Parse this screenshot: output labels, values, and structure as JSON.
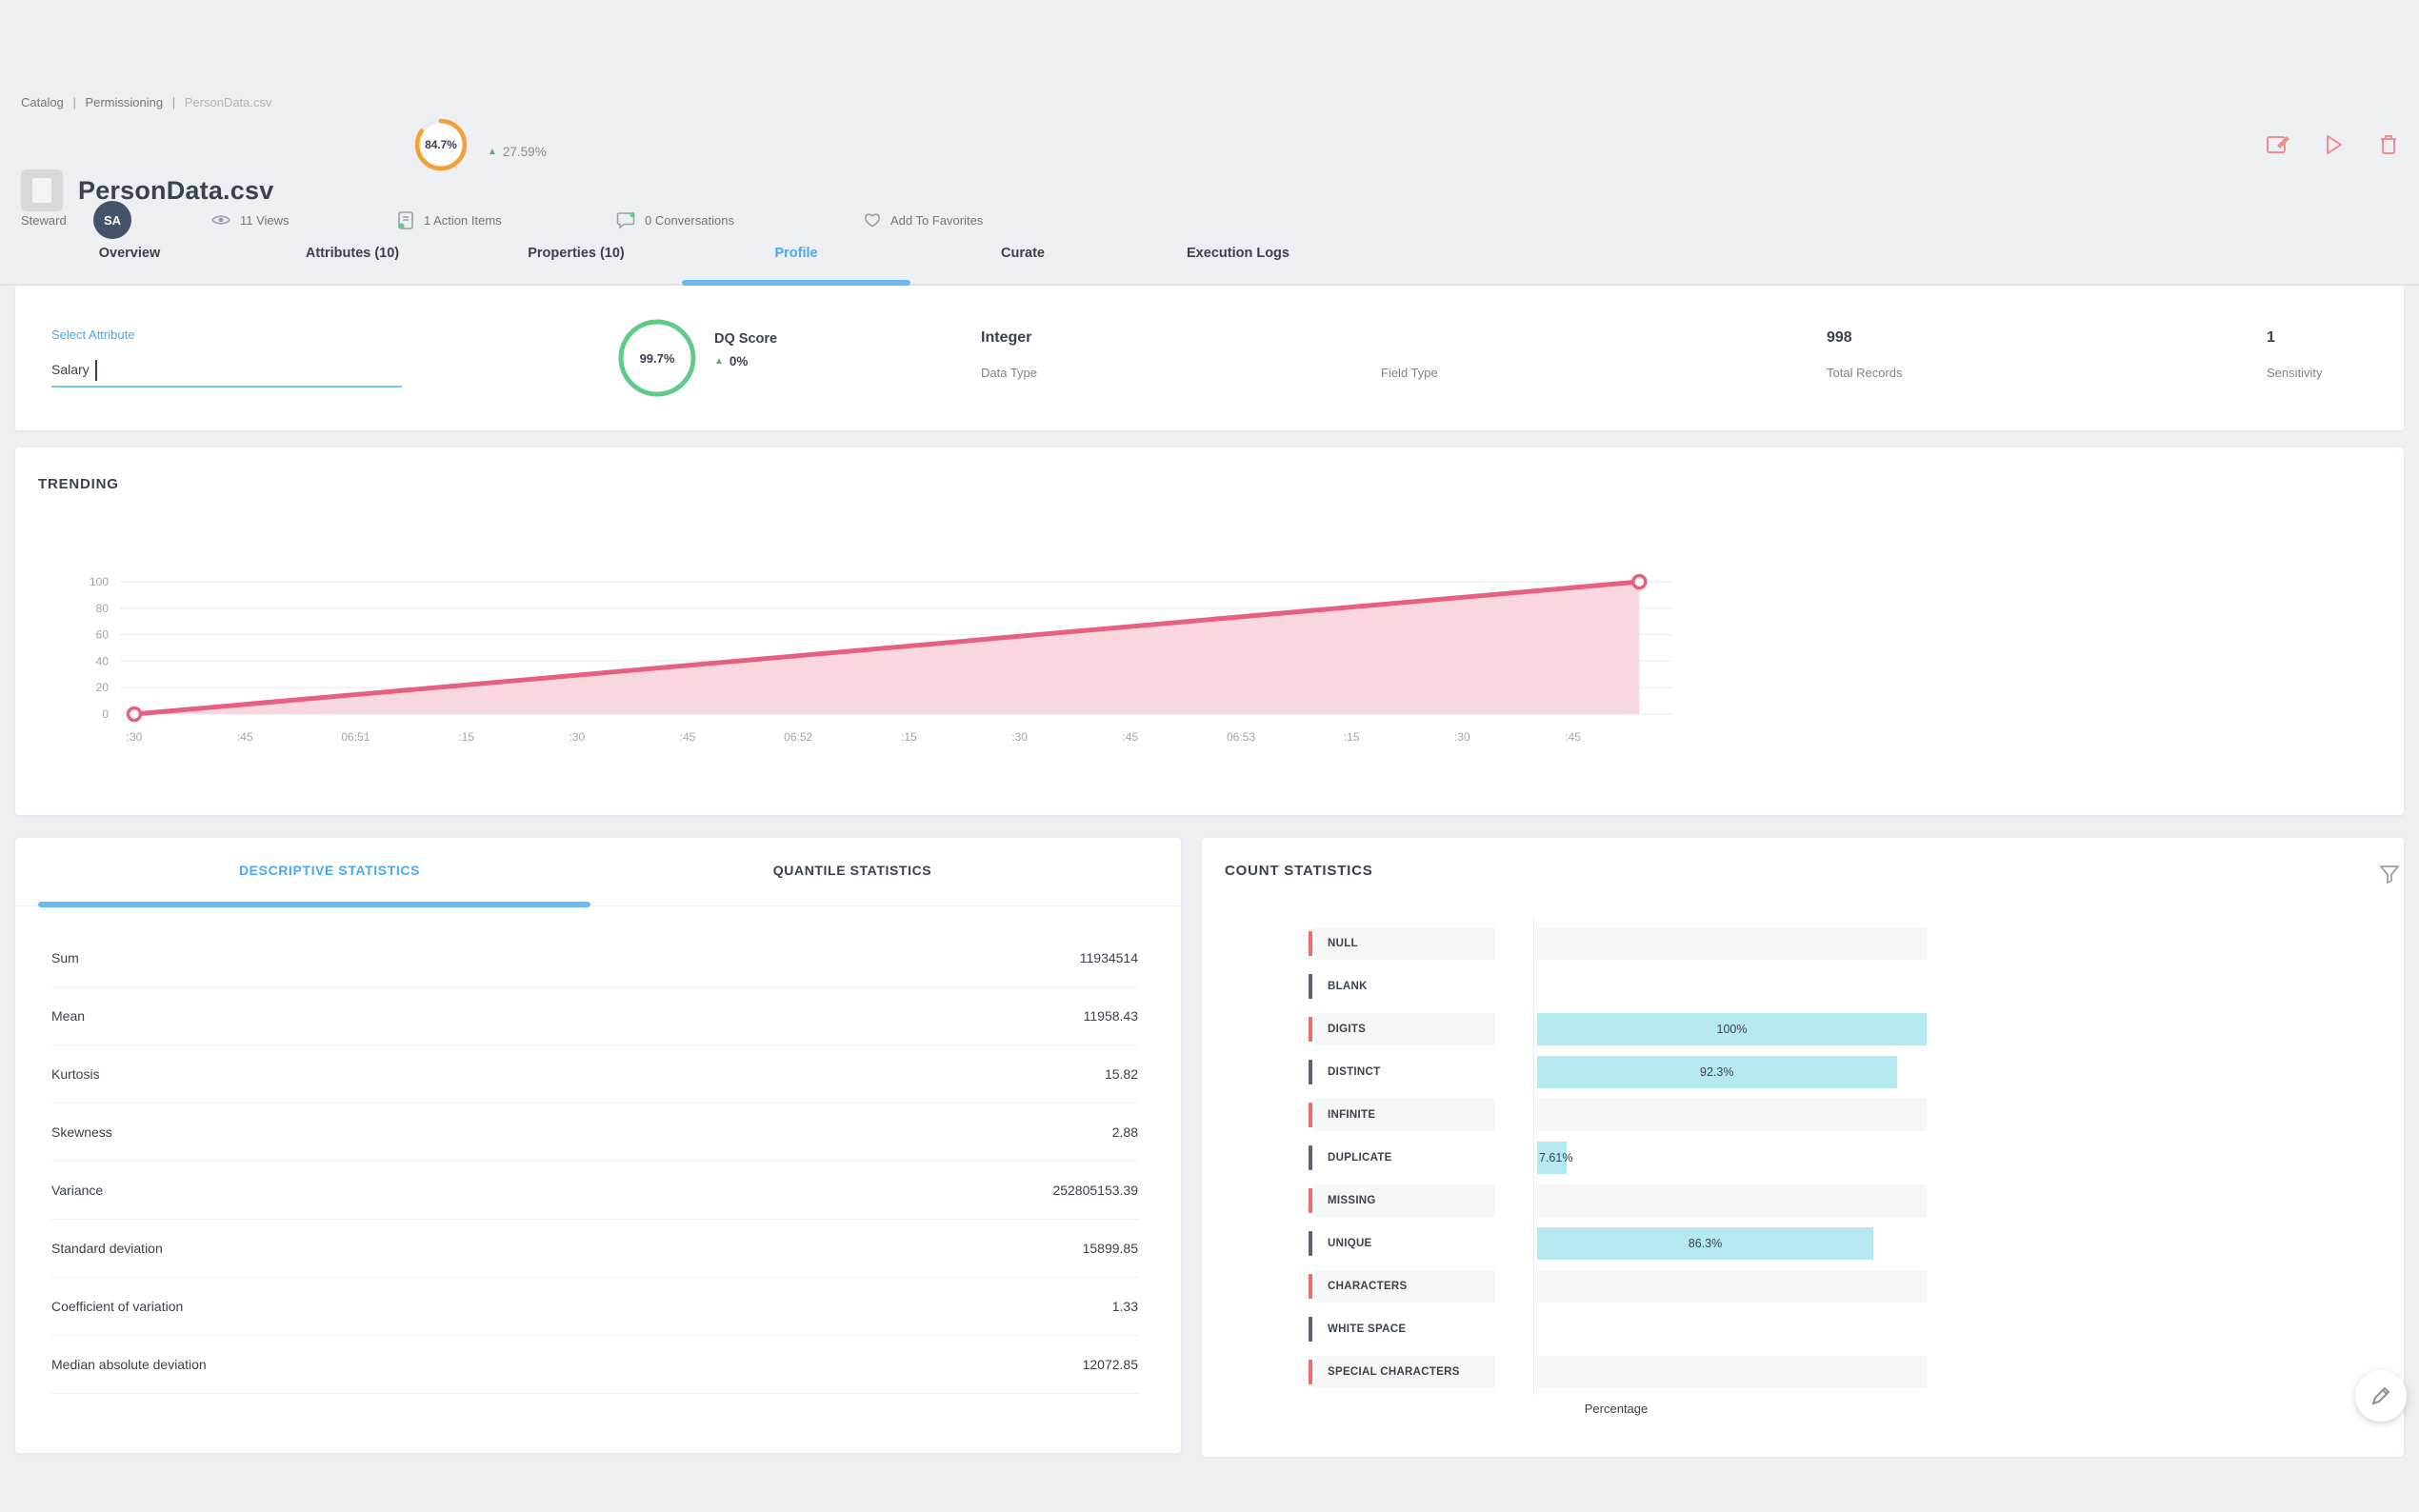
{
  "breadcrumb": {
    "items": [
      "Catalog",
      "Permissioning",
      "PersonData.csv"
    ],
    "separator": "|"
  },
  "header": {
    "title": "PersonData.csv",
    "gauge": {
      "value_label": "84.7%",
      "percent": 84.7,
      "color": "#f0a236"
    },
    "trend": {
      "arrow": "▲",
      "label": "27.59%"
    },
    "meta": {
      "steward_label": "Steward",
      "steward_initials": "SA",
      "views": "11 Views",
      "action_items": "1 Action Items",
      "conversations": "0 Conversations",
      "favorites": "Add To Favorites"
    },
    "tabs": [
      {
        "label": "Overview",
        "active": false
      },
      {
        "label": "Attributes (10)",
        "active": false
      },
      {
        "label": "Properties (10)",
        "active": false
      },
      {
        "label": "Profile",
        "active": true
      },
      {
        "label": "Curate",
        "active": false
      },
      {
        "label": "Execution Logs",
        "active": false
      }
    ]
  },
  "attribute_panel": {
    "select_label": "Select Attribute",
    "input_value": "Salary",
    "dq": {
      "score_label": "99.7%",
      "percent": 99.7,
      "title": "DQ Score",
      "trend_arrow": "▲",
      "trend_label": "0%"
    },
    "fields": [
      {
        "value": "Integer",
        "label": "Data Type"
      },
      {
        "value": "",
        "label": "Field Type"
      },
      {
        "value": "998",
        "label": "Total Records"
      },
      {
        "value": "1",
        "label": "Sensitivity"
      }
    ]
  },
  "trending": {
    "title": "TRENDING"
  },
  "stats_panel": {
    "tabs": [
      {
        "label": "DESCRIPTIVE STATISTICS",
        "active": true
      },
      {
        "label": "QUANTILE STATISTICS",
        "active": false
      }
    ],
    "rows": [
      {
        "label": "Sum",
        "value": "11934514"
      },
      {
        "label": "Mean",
        "value": "11958.43"
      },
      {
        "label": "Kurtosis",
        "value": "15.82"
      },
      {
        "label": "Skewness",
        "value": "2.88"
      },
      {
        "label": "Variance",
        "value": "252805153.39"
      },
      {
        "label": "Standard deviation",
        "value": "15899.85"
      },
      {
        "label": "Coefficient of variation",
        "value": "1.33"
      },
      {
        "label": "Median absolute deviation",
        "value": "12072.85"
      }
    ]
  },
  "count_panel": {
    "title": "COUNT STATISTICS",
    "axis_label": "Percentage"
  },
  "chart_data": [
    {
      "type": "area",
      "title": "TRENDING",
      "x_tick_labels": [
        ":30",
        ":45",
        "06:51",
        ":15",
        ":30",
        ":45",
        "06:52",
        ":15",
        ":30",
        ":45",
        "06:53",
        ":15",
        ":30",
        ":45"
      ],
      "y_ticks": [
        0,
        20,
        40,
        60,
        80,
        100
      ],
      "ylim": [
        0,
        100
      ],
      "series": [
        {
          "name": "trend",
          "points": [
            {
              "t": 0,
              "value": 0
            },
            {
              "t": 13.6,
              "value": 100
            }
          ]
        }
      ],
      "line_color": "#e8607f",
      "fill_color": "#f8d8de",
      "markers": "hollow-endpoints",
      "grid": true,
      "legend": false
    },
    {
      "type": "bar",
      "orientation": "horizontal",
      "categories": [
        "NULL",
        "BLANK",
        "DIGITS",
        "DISTINCT",
        "INFINITE",
        "DUPLICATE",
        "MISSING",
        "UNIQUE",
        "CHARACTERS",
        "WHITE SPACE",
        "SPECIAL CHARACTERS"
      ],
      "values": [
        0,
        0,
        100,
        92.3,
        0,
        7.61,
        0,
        86.3,
        0,
        0,
        0
      ],
      "value_labels": [
        "",
        "",
        "100%",
        "92.3%",
        "",
        "7.61%",
        "",
        "86.3%",
        "",
        "",
        ""
      ],
      "xlabel": "Percentage",
      "xlim": [
        0,
        100
      ],
      "bar_color": "#b5e8f0",
      "tick_colors_alternate": [
        "#f16a6a",
        "#5a646f"
      ]
    }
  ],
  "icons": {
    "header_actions": [
      "note-edit-icon",
      "play-icon",
      "trash-icon"
    ],
    "meta": [
      "eye-icon",
      "clipboard-icon",
      "chat-icon",
      "heart-icon"
    ],
    "count_filter": "funnel-icon",
    "fab": "pencil-icon"
  },
  "colors": {
    "accent_blue": "#4aa8f0",
    "gauge_orange": "#f0a236",
    "dq_green": "#5ecb87",
    "trend_green": "#4db36a",
    "line_pink": "#e8607f",
    "bar_cyan": "#b5e8f0",
    "tick_red": "#f16a6a"
  }
}
